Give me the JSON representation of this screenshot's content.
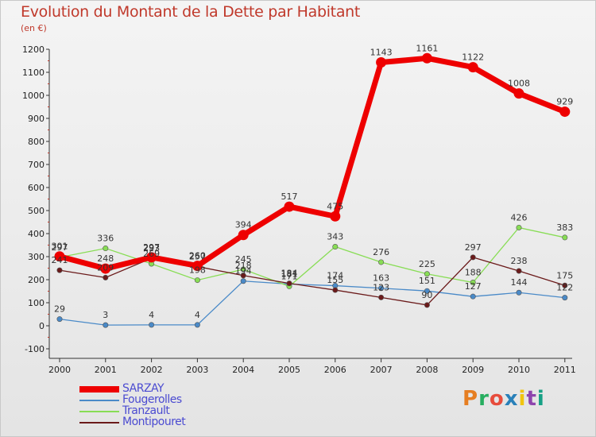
{
  "title": "Evolution du Montant de la Dette par Habitant",
  "subtitle": "(en €)",
  "logo": {
    "text": "Proxiti",
    "colors": [
      "#e67e22",
      "#27ae60",
      "#e74c3c",
      "#2980b9",
      "#f1c40f",
      "#8e44ad",
      "#16a085"
    ]
  },
  "chart_data": {
    "type": "line",
    "categories": [
      "2000",
      "2001",
      "2002",
      "2003",
      "2004",
      "2005",
      "2006",
      "2007",
      "2008",
      "2009",
      "2010",
      "2011"
    ],
    "ylim": [
      -100,
      1200
    ],
    "yticks": [
      -100,
      0,
      100,
      200,
      300,
      400,
      500,
      600,
      700,
      800,
      900,
      1000,
      1100,
      1200
    ],
    "grid": false,
    "legend_position": "bottom-left",
    "series": [
      {
        "name": "SARZAY",
        "color": "#ee0000",
        "values": [
          301,
          248,
          297,
          260,
          394,
          517,
          475,
          1143,
          1161,
          1122,
          1008,
          929
        ]
      },
      {
        "name": "Fougerolles",
        "color": "#4a8ac8",
        "values": [
          29,
          3,
          4,
          4,
          194,
          181,
          174,
          163,
          151,
          127,
          144,
          122
        ]
      },
      {
        "name": "Tranzault",
        "color": "#88dd55",
        "values": [
          297,
          336,
          269,
          198,
          245,
          171,
          343,
          276,
          225,
          188,
          426,
          383
        ]
      },
      {
        "name": "Montipouret",
        "color": "#6b1a1a",
        "values": [
          241,
          209,
          293,
          257,
          218,
          184,
          155,
          123,
          90,
          297,
          238,
          175
        ]
      }
    ]
  }
}
